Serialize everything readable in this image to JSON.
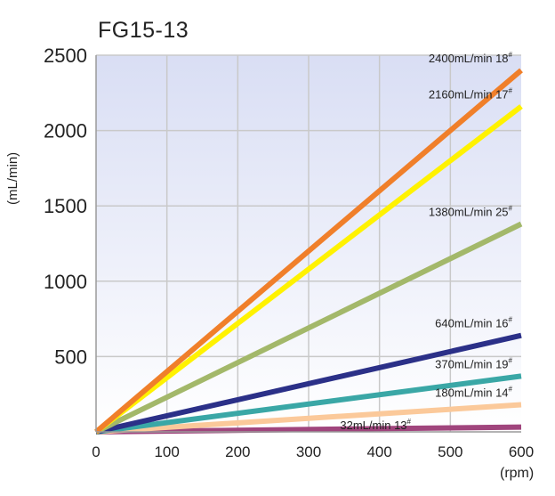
{
  "chart_data": {
    "type": "line",
    "title": "FG15-13",
    "xlabel": "(rpm)",
    "ylabel": "(mL/min)",
    "xlim": [
      0,
      600
    ],
    "ylim": [
      0,
      2500
    ],
    "xticks": [
      "0",
      "100",
      "200",
      "300",
      "400",
      "500",
      "600"
    ],
    "yticks": [
      "500",
      "1000",
      "1500",
      "2000",
      "2500"
    ],
    "grid": true,
    "series": [
      {
        "name": "2400mL/min",
        "tube": "18",
        "color": "#f07f2a",
        "x": [
          0,
          600
        ],
        "y": [
          0,
          2400
        ]
      },
      {
        "name": "2160mL/min",
        "tube": "17",
        "color": "#fff200",
        "x": [
          0,
          600
        ],
        "y": [
          0,
          2160
        ]
      },
      {
        "name": "1380mL/min",
        "tube": "25",
        "color": "#a3b86a",
        "x": [
          0,
          600
        ],
        "y": [
          0,
          1380
        ]
      },
      {
        "name": "640mL/min",
        "tube": "16",
        "color": "#2b3088",
        "x": [
          0,
          600
        ],
        "y": [
          0,
          640
        ]
      },
      {
        "name": "370mL/min",
        "tube": "19",
        "color": "#3aa7a6",
        "x": [
          0,
          600
        ],
        "y": [
          0,
          370
        ]
      },
      {
        "name": "180mL/min",
        "tube": "14",
        "color": "#fbc99a",
        "x": [
          0,
          600
        ],
        "y": [
          0,
          180
        ]
      },
      {
        "name": "32mL/min",
        "tube": "13",
        "color": "#a0457d",
        "x": [
          0,
          600
        ],
        "y": [
          0,
          32
        ]
      }
    ],
    "sup_mark": "#"
  }
}
